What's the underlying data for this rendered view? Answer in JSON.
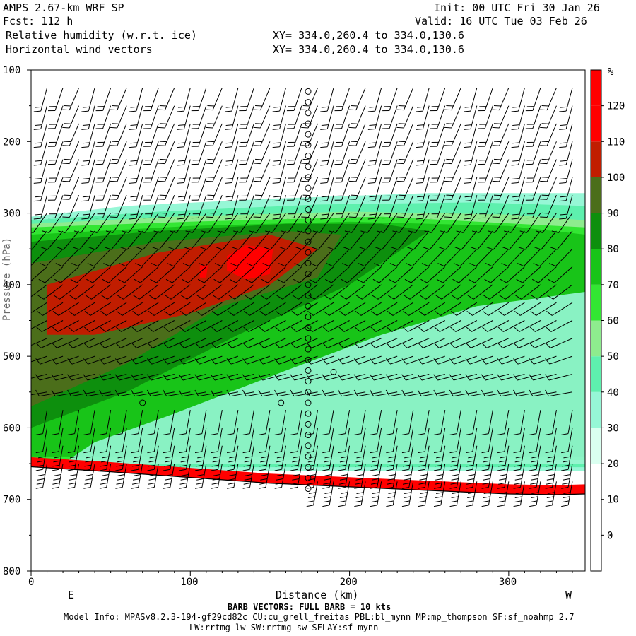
{
  "header": {
    "model": "AMPS 2.67-km WRF SP",
    "fcst": "Fcst: 112 h",
    "field1": "Relative humidity (w.r.t. ice)",
    "field2": "Horizontal wind vectors",
    "init": "Init: 00 UTC Fri 30 Jan 26",
    "valid": "Valid: 16 UTC Tue 03 Feb 26",
    "xy1": "XY= 334.0,260.4 to 334.0,130.6",
    "xy2": "XY= 334.0,260.4 to 334.0,130.6"
  },
  "footer": {
    "barb_note": "BARB VECTORS: FULL BARB = 10 kts",
    "model_info": "Model Info: MPASv8.2.3-194-gf29cd82c CU:cu_grell_freitas PBL:bl_mynn MP:mp_thompson SF:sf_noahmp 2.7",
    "model_info2": "LW:rrtmg_lw SW:rrtmg_sw SFLAY:sf_mynn"
  },
  "chart_data": {
    "type": "contour cross-section with wind barbs",
    "xlabel": "Distance (km)",
    "ylabel": "Pressure (hPa)",
    "x_ticks": [
      0,
      100,
      200,
      300
    ],
    "y_ticks": [
      100,
      200,
      300,
      400,
      500,
      600,
      700,
      800
    ],
    "xlim": [
      0,
      348
    ],
    "ylim": [
      800,
      100
    ],
    "left_end_label": "E",
    "right_end_label": "W",
    "colorbar": {
      "unit": "%",
      "levels": [
        0,
        10,
        20,
        30,
        40,
        50,
        60,
        70,
        80,
        90,
        100,
        110,
        120
      ],
      "colors": [
        "#ffffff",
        "#ffffff",
        "#ffffff",
        "#dafff0",
        "#96f7d6",
        "#5ef0ae",
        "#8eec8e",
        "#33e633",
        "#18c418",
        "#0d8f0d",
        "#4b6e1a",
        "#c11d00",
        "#ff0000",
        "#ff0000"
      ]
    },
    "surface_pressure": [
      [
        0,
        655
      ],
      [
        50,
        662
      ],
      [
        100,
        670
      ],
      [
        150,
        678
      ],
      [
        200,
        683
      ],
      [
        250,
        688
      ],
      [
        300,
        693
      ],
      [
        330,
        694
      ],
      [
        348,
        693
      ]
    ],
    "rh_regions": [
      {
        "level": 30,
        "points": [
          [
            0,
            305
          ],
          [
            60,
            290
          ],
          [
            150,
            280
          ],
          [
            250,
            272
          ],
          [
            348,
            272
          ],
          [
            348,
            660
          ],
          [
            0,
            660
          ]
        ]
      },
      {
        "level": 40,
        "points": [
          [
            0,
            310
          ],
          [
            80,
            298
          ],
          [
            180,
            288
          ],
          [
            280,
            285
          ],
          [
            348,
            290
          ],
          [
            348,
            655
          ],
          [
            0,
            655
          ]
        ]
      },
      {
        "level": 50,
        "points": [
          [
            0,
            315
          ],
          [
            90,
            305
          ],
          [
            200,
            298
          ],
          [
            300,
            302
          ],
          [
            348,
            310
          ],
          [
            348,
            650
          ],
          [
            0,
            650
          ]
        ]
      },
      {
        "level": 60,
        "points": [
          [
            0,
            320
          ],
          [
            100,
            312
          ],
          [
            220,
            305
          ],
          [
            348,
            320
          ],
          [
            348,
            645
          ],
          [
            0,
            645
          ]
        ]
      },
      {
        "level": 70,
        "points": [
          [
            0,
            330
          ],
          [
            100,
            318
          ],
          [
            200,
            312
          ],
          [
            300,
            318
          ],
          [
            348,
            330
          ],
          [
            348,
            640
          ],
          [
            0,
            640
          ]
        ]
      },
      {
        "level": 80,
        "points": [
          [
            0,
            340
          ],
          [
            80,
            325
          ],
          [
            160,
            315
          ],
          [
            220,
            315
          ],
          [
            250,
            325
          ],
          [
            200,
            400
          ],
          [
            130,
            470
          ],
          [
            60,
            550
          ],
          [
            0,
            600
          ]
        ]
      },
      {
        "level": 90,
        "points": [
          [
            0,
            370
          ],
          [
            80,
            340
          ],
          [
            160,
            325
          ],
          [
            195,
            330
          ],
          [
            180,
            390
          ],
          [
            120,
            430
          ],
          [
            60,
            510
          ],
          [
            0,
            570
          ]
        ]
      },
      {
        "level": 100,
        "points": [
          [
            10,
            400
          ],
          [
            80,
            355
          ],
          [
            150,
            330
          ],
          [
            180,
            350
          ],
          [
            150,
            400
          ],
          [
            100,
            440
          ],
          [
            40,
            470
          ],
          [
            10,
            470
          ]
        ]
      },
      {
        "level": 110,
        "points": [
          [
            123,
            360
          ],
          [
            135,
            345
          ],
          [
            152,
            350
          ],
          [
            150,
            385
          ],
          [
            135,
            393
          ],
          [
            123,
            380
          ]
        ]
      },
      {
        "level": 110,
        "points": [
          [
            106,
            373
          ],
          [
            111,
            373
          ],
          [
            110,
            390
          ],
          [
            106,
            390
          ]
        ]
      }
    ],
    "dry_tongue_points": [
      [
        348,
        410
      ],
      [
        280,
        430
      ],
      [
        220,
        470
      ],
      [
        160,
        520
      ],
      [
        90,
        580
      ],
      [
        40,
        620
      ],
      [
        20,
        650
      ],
      [
        348,
        650
      ]
    ],
    "barb_columns_km": [
      10,
      20,
      30,
      40,
      50,
      60,
      70,
      80,
      90,
      100,
      110,
      120,
      130,
      140,
      150,
      160,
      170,
      180,
      190,
      200,
      210,
      220,
      230,
      240,
      250,
      260,
      270,
      280,
      290,
      300,
      310,
      320,
      330,
      340
    ],
    "calm_column_km": 174,
    "calm_circles_p": [
      130,
      145,
      160,
      175,
      190,
      205,
      220,
      235,
      250,
      265,
      280,
      295,
      310,
      325,
      340,
      355,
      370,
      385,
      400,
      415,
      430,
      445,
      460,
      475,
      490,
      505,
      520,
      535,
      550,
      565,
      580,
      595,
      610,
      625,
      640,
      655,
      670,
      685
    ],
    "scattered_calm_points": [
      [
        70,
        565
      ],
      [
        157,
        565
      ],
      [
        190,
        522
      ]
    ]
  }
}
